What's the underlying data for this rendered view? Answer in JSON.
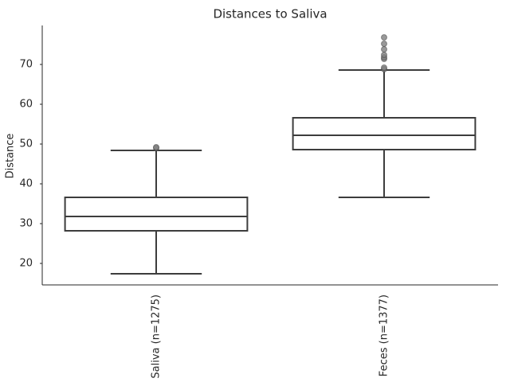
{
  "chart_data": {
    "type": "box",
    "title": "Distances to Saliva",
    "y_label": "Distance",
    "categories": [
      "Saliva (n=1275)",
      "Feces (n=1377)"
    ],
    "boxes": [
      {
        "min": 17.4,
        "q1": 28.2,
        "median": 31.8,
        "q3": 36.6,
        "max": 48.4,
        "outliers": [
          49.0,
          49.2
        ]
      },
      {
        "min": 36.6,
        "q1": 48.6,
        "median": 52.2,
        "q3": 56.6,
        "max": 68.6,
        "outliers": [
          68.8,
          69.2,
          71.4,
          71.8,
          72.4,
          73.8,
          75.2,
          76.8
        ]
      }
    ],
    "color": "#3d3d3d",
    "outlier_color": "#7f7f7f",
    "ylim": [
      14.6,
      79.8
    ],
    "yticks": [
      20,
      30,
      40,
      50,
      60,
      70
    ]
  }
}
